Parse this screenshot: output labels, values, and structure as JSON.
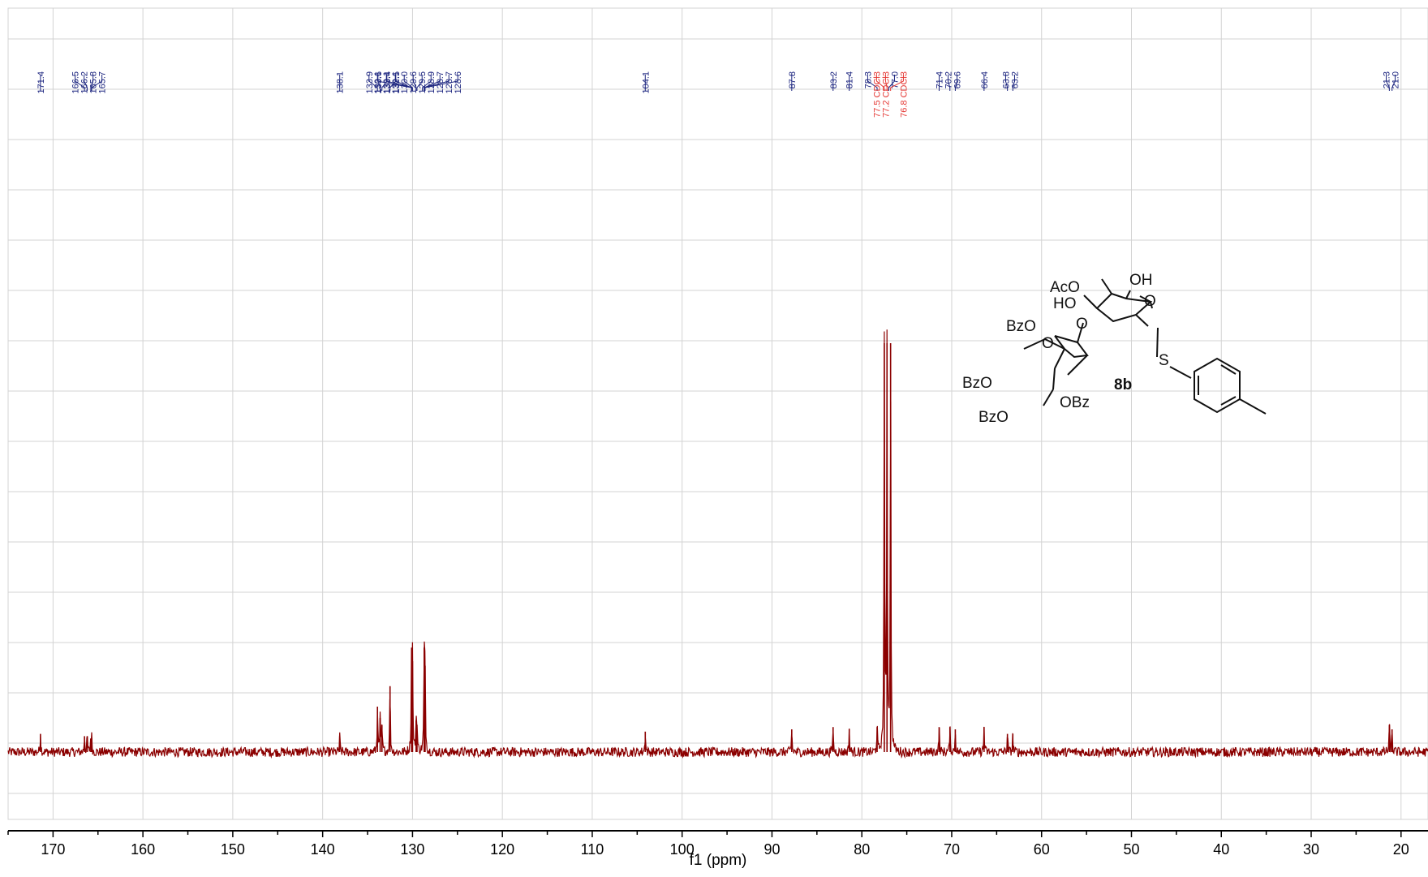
{
  "chart_data": {
    "type": "line",
    "title": "",
    "xlabel": "f1 (ppm)",
    "ylabel": "",
    "xlim": [
      175,
      17
    ],
    "x_reversed": true,
    "grid": true,
    "x_ticks": [
      "170",
      "160",
      "150",
      "140",
      "130",
      "120",
      "110",
      "100",
      "90",
      "80",
      "70",
      "60",
      "50",
      "40",
      "30",
      "20"
    ],
    "series": [
      {
        "name": "",
        "color": "#8b0000",
        "baseline": 0,
        "peaks": [
          {
            "ppm": 171.4,
            "height": 8
          },
          {
            "ppm": 166.5,
            "height": 7
          },
          {
            "ppm": 166.2,
            "height": 7
          },
          {
            "ppm": 165.8,
            "height": 6
          },
          {
            "ppm": 165.7,
            "height": 6
          },
          {
            "ppm": 138.1,
            "height": 7
          },
          {
            "ppm": 133.9,
            "height": 20
          },
          {
            "ppm": 133.6,
            "height": 15
          },
          {
            "ppm": 133.4,
            "height": 12
          },
          {
            "ppm": 132.5,
            "height": 29
          },
          {
            "ppm": 130.1,
            "height": 46
          },
          {
            "ppm": 130.0,
            "height": 40
          },
          {
            "ppm": 129.6,
            "height": 14
          },
          {
            "ppm": 129.5,
            "height": 12
          },
          {
            "ppm": 128.7,
            "height": 46
          },
          {
            "ppm": 128.6,
            "height": 38
          },
          {
            "ppm": 104.1,
            "height": 9
          },
          {
            "ppm": 87.8,
            "height": 10
          },
          {
            "ppm": 83.2,
            "height": 11
          },
          {
            "ppm": 81.4,
            "height": 10
          },
          {
            "ppm": 78.3,
            "height": 11
          },
          {
            "ppm": 77.5,
            "height": 180
          },
          {
            "ppm": 77.2,
            "height": 180
          },
          {
            "ppm": 76.8,
            "height": 180
          },
          {
            "ppm": 71.4,
            "height": 11
          },
          {
            "ppm": 70.2,
            "height": 11
          },
          {
            "ppm": 69.6,
            "height": 10
          },
          {
            "ppm": 66.4,
            "height": 11
          },
          {
            "ppm": 63.8,
            "height": 8
          },
          {
            "ppm": 63.2,
            "height": 8
          },
          {
            "ppm": 21.3,
            "height": 12
          },
          {
            "ppm": 21.0,
            "height": 10
          }
        ]
      }
    ],
    "peak_labels": [
      {
        "ppm": 171.4,
        "text": "171.4",
        "color": "#1a237e"
      },
      {
        "ppm": 166.5,
        "text": "166.5",
        "color": "#1a237e"
      },
      {
        "ppm": 166.2,
        "text": "166.2",
        "color": "#1a237e"
      },
      {
        "ppm": 165.8,
        "text": "165.8",
        "color": "#1a237e"
      },
      {
        "ppm": 165.7,
        "text": "165.7",
        "color": "#1a237e"
      },
      {
        "ppm": 138.1,
        "text": "138.1",
        "color": "#1a237e"
      },
      {
        "ppm": 133.9,
        "text": "133.9",
        "color": "#1a237e"
      },
      {
        "ppm": 133.6,
        "text": "133.6",
        "color": "#1a237e"
      },
      {
        "ppm": 133.4,
        "text": "133.4",
        "color": "#1a237e"
      },
      {
        "ppm": 132.5,
        "text": "132.5",
        "color": "#1a237e"
      },
      {
        "ppm": 130.1,
        "text": "130.1",
        "color": "#1a237e"
      },
      {
        "ppm": 130.1,
        "text": "130.1",
        "color": "#1a237e"
      },
      {
        "ppm": 130.1,
        "text": "130.1",
        "color": "#1a237e"
      },
      {
        "ppm": 130.0,
        "text": "130.0",
        "color": "#1a237e"
      },
      {
        "ppm": 129.6,
        "text": "129.6",
        "color": "#1a237e"
      },
      {
        "ppm": 129.5,
        "text": "129.5",
        "color": "#1a237e"
      },
      {
        "ppm": 128.9,
        "text": "128.9",
        "color": "#1a237e"
      },
      {
        "ppm": 128.7,
        "text": "128.7",
        "color": "#1a237e"
      },
      {
        "ppm": 128.7,
        "text": "128.7",
        "color": "#1a237e"
      },
      {
        "ppm": 128.6,
        "text": "128.6",
        "color": "#1a237e"
      },
      {
        "ppm": 104.1,
        "text": "104.1",
        "color": "#1a237e"
      },
      {
        "ppm": 87.8,
        "text": "87.8",
        "color": "#1a237e"
      },
      {
        "ppm": 83.2,
        "text": "83.2",
        "color": "#1a237e"
      },
      {
        "ppm": 81.4,
        "text": "81.4",
        "color": "#1a237e"
      },
      {
        "ppm": 78.3,
        "text": "78.3",
        "color": "#1a237e"
      },
      {
        "ppm": 77.5,
        "text": "77.5 CDCl3",
        "color": "#e53935"
      },
      {
        "ppm": 77.2,
        "text": "77.2 CDCl3",
        "color": "#e53935"
      },
      {
        "ppm": 77.0,
        "text": "77.0",
        "color": "#1a237e"
      },
      {
        "ppm": 76.8,
        "text": "76.8 CDCl3",
        "color": "#e53935"
      },
      {
        "ppm": 71.4,
        "text": "71.4",
        "color": "#1a237e"
      },
      {
        "ppm": 70.2,
        "text": "70.2",
        "color": "#1a237e"
      },
      {
        "ppm": 69.6,
        "text": "69.6",
        "color": "#1a237e"
      },
      {
        "ppm": 66.4,
        "text": "66.4",
        "color": "#1a237e"
      },
      {
        "ppm": 63.8,
        "text": "63.8",
        "color": "#1a237e"
      },
      {
        "ppm": 63.2,
        "text": "63.2",
        "color": "#1a237e"
      },
      {
        "ppm": 21.3,
        "text": "21.3",
        "color": "#1a237e"
      },
      {
        "ppm": 21.0,
        "text": "21.0",
        "color": "#1a237e"
      }
    ]
  },
  "structure": {
    "compound_label": "8b",
    "labels": [
      "AcO",
      "OH",
      "HO",
      "O",
      "O",
      "BzO",
      "O",
      "S",
      "BzO",
      "OBz",
      "BzO"
    ]
  },
  "colors": {
    "spectrum": "#8b0000",
    "peak_label": "#1a237e",
    "solvent_label": "#e53935",
    "grid": "#d3d3d3",
    "axis": "#000000"
  }
}
